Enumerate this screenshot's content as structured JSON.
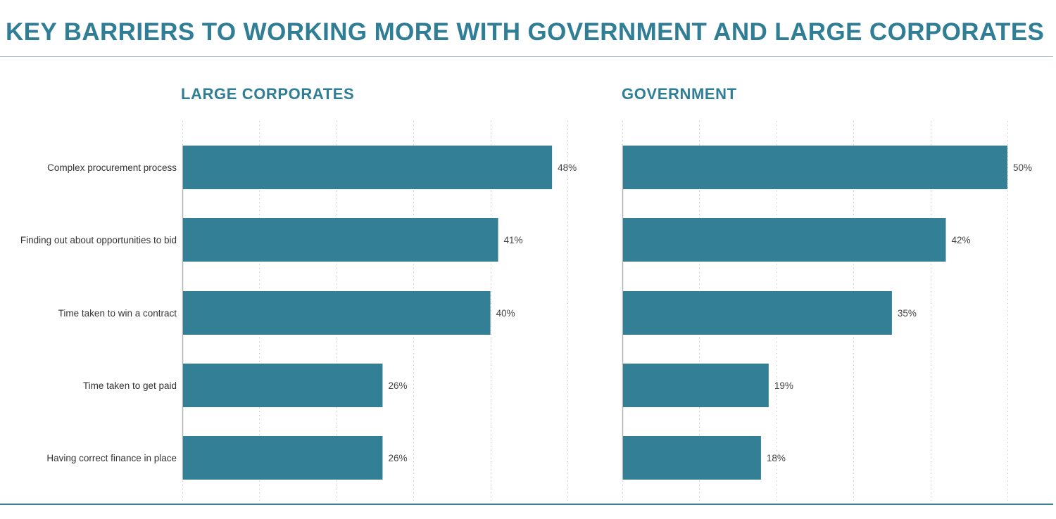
{
  "title": "KEY BARRIERS TO WORKING MORE WITH GOVERNMENT AND LARGE CORPORATES",
  "colors": {
    "accent": "#307e96",
    "bar": "#327f96",
    "grid": "#c8c8c8"
  },
  "chart_data": [
    {
      "type": "bar",
      "orientation": "horizontal",
      "title": "LARGE CORPORATES",
      "categories": [
        "Complex procurement process",
        "Finding out about opportunities to bid",
        "Time taken to win a contract",
        "Time taken to get paid",
        "Having correct finance in place"
      ],
      "values": [
        48,
        41,
        40,
        26,
        26
      ],
      "value_labels": [
        "48%",
        "41%",
        "40%",
        "26%",
        "26%"
      ],
      "xlim": [
        0,
        50
      ],
      "grid": true
    },
    {
      "type": "bar",
      "orientation": "horizontal",
      "title": "GOVERNMENT",
      "categories": [
        "Complex procurement process",
        "Finding out about opportunities to bid",
        "Time taken to win a contract",
        "Time taken to get paid",
        "Having correct finance in place"
      ],
      "values": [
        50,
        42,
        35,
        19,
        18
      ],
      "value_labels": [
        "50%",
        "42%",
        "35%",
        "19%",
        "18%"
      ],
      "xlim": [
        0,
        50
      ],
      "grid": true
    }
  ]
}
